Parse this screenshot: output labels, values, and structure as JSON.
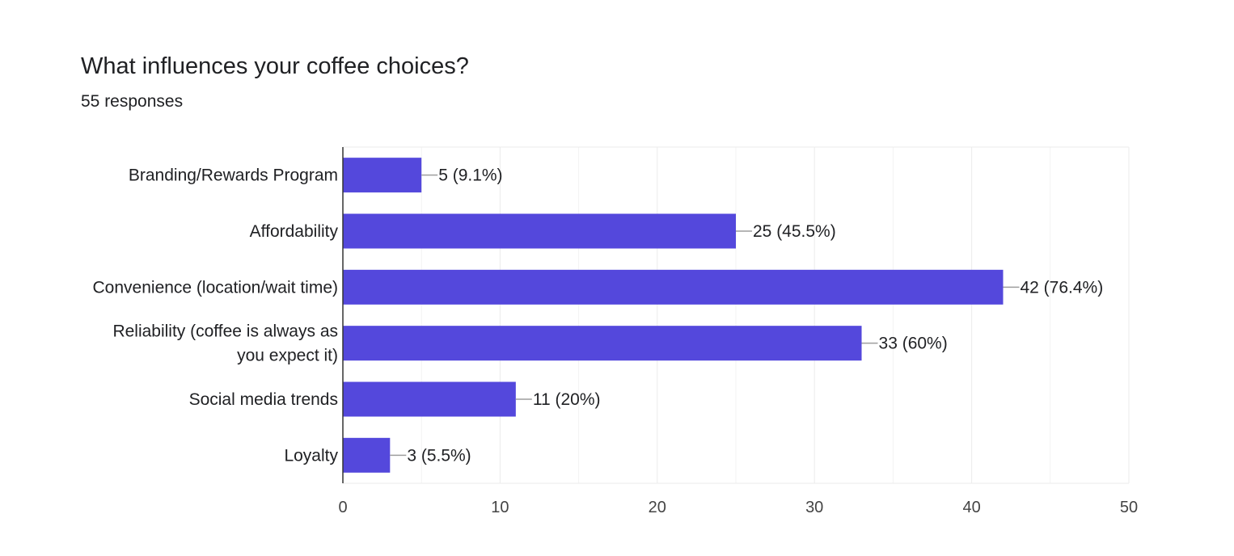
{
  "header": {
    "title": "What influences your coffee choices?",
    "responses": "55 responses"
  },
  "colors": {
    "bar": "#5448dc",
    "grid": "#ebebeb",
    "axis": "#333333",
    "leader": "#9e9e9e"
  },
  "chart_data": {
    "type": "bar",
    "orientation": "horizontal",
    "title": "What influences your coffee choices?",
    "subtitle": "55 responses",
    "categories": [
      [
        "Branding/Rewards Program"
      ],
      [
        "Affordability"
      ],
      [
        "Convenience (location/wait time)"
      ],
      [
        "Reliability (coffee is always as",
        "you expect it)"
      ],
      [
        "Social media trends"
      ],
      [
        "Loyalty"
      ]
    ],
    "values": [
      5,
      25,
      42,
      33,
      11,
      3
    ],
    "data_labels": [
      "5 (9.1%)",
      "25 (45.5%)",
      "42 (76.4%)",
      "33 (60%)",
      "11 (20%)",
      "3 (5.5%)"
    ],
    "xlim": [
      0,
      50
    ],
    "xticks": [
      0,
      10,
      20,
      30,
      40,
      50
    ],
    "grid": true,
    "legend": false
  }
}
